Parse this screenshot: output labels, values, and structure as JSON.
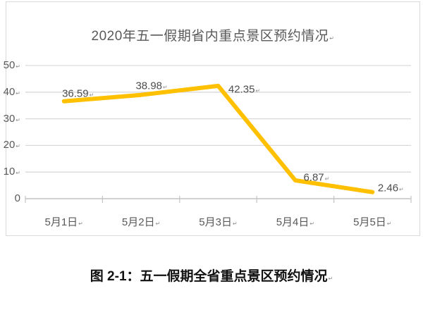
{
  "marks": {
    "return": "↵"
  },
  "figure": {
    "caption": "图 2-1：五一假期全省重点景区预约情况"
  },
  "chart_data": {
    "type": "line",
    "title": "2020年五一假期省内重点景区预约情况",
    "categories": [
      "5月1日",
      "5月2日",
      "5月3日",
      "5月4日",
      "5月5日"
    ],
    "values": [
      36.59,
      38.98,
      42.35,
      6.87,
      2.46
    ],
    "data_labels": [
      "36.59",
      "38.98",
      "42.35",
      "6.87",
      "2.46"
    ],
    "y_ticks": [
      50,
      40,
      30,
      20,
      10,
      0
    ],
    "ylim": [
      0,
      50
    ],
    "grid": true,
    "legend": "none",
    "colors": {
      "line": "#FFC000",
      "grid": "#D9D9D9",
      "axis": "#C4C4C4",
      "text": "#595959",
      "title": "#595959",
      "caption": "#111111"
    }
  }
}
